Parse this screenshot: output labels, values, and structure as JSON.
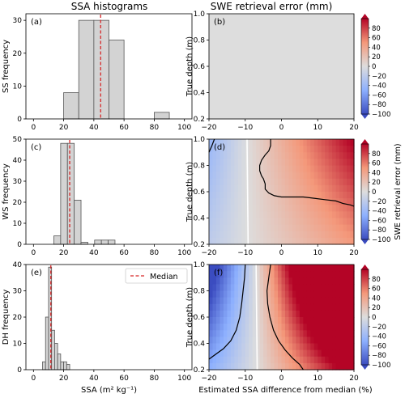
{
  "chart_data": [
    {
      "type": "bar",
      "panel": "a",
      "panel_label": "(a)",
      "column_title": "SSA histograms",
      "ylabel": "SS frequency",
      "xlabel": "",
      "xlim": [
        -5,
        105
      ],
      "ylim": [
        0,
        32
      ],
      "xticks": [
        "0",
        "20",
        "40",
        "60",
        "80",
        "100"
      ],
      "yticks": [
        "0",
        "10",
        "20",
        "30"
      ],
      "bins": [
        [
          20,
          30
        ],
        [
          30,
          40
        ],
        [
          40,
          50
        ],
        [
          50,
          60
        ],
        [
          60,
          70
        ],
        [
          70,
          80
        ],
        [
          80,
          90
        ]
      ],
      "values": [
        8,
        30,
        30,
        24,
        0,
        0,
        2
      ],
      "median": 44.5,
      "median_color": "#d62728",
      "bar_color": "#d3d3d3"
    },
    {
      "type": "bar",
      "panel": "c",
      "panel_label": "(c)",
      "ylabel": "WS frequency",
      "xlabel": "",
      "xlim": [
        -5,
        105
      ],
      "ylim": [
        0,
        50
      ],
      "xticks": [
        "0",
        "20",
        "40",
        "60",
        "80",
        "100"
      ],
      "yticks": [
        "0",
        "10",
        "20",
        "30",
        "40",
        "50"
      ],
      "bins": [
        [
          13.5,
          18
        ],
        [
          18,
          22.5
        ],
        [
          22.5,
          27
        ],
        [
          27,
          31.5
        ],
        [
          31.5,
          36
        ],
        [
          36,
          40.5
        ],
        [
          40.5,
          45
        ],
        [
          45,
          49.5
        ],
        [
          49.5,
          54
        ]
      ],
      "values": [
        4,
        48,
        48,
        21,
        1,
        0,
        2,
        2,
        2
      ],
      "median": 24,
      "median_color": "#d62728",
      "bar_color": "#d3d3d3"
    },
    {
      "type": "bar",
      "panel": "e",
      "panel_label": "(e)",
      "ylabel": "DH frequency",
      "xlabel": "SSA (m² kg⁻¹)",
      "xlim": [
        -5,
        105
      ],
      "ylim": [
        0,
        40
      ],
      "xticks": [
        "0",
        "20",
        "40",
        "60",
        "80",
        "100"
      ],
      "yticks": [
        "0",
        "10",
        "20",
        "30",
        "40"
      ],
      "bins": [
        [
          6,
          8
        ],
        [
          8,
          10
        ],
        [
          10,
          12
        ],
        [
          12,
          14
        ],
        [
          14,
          16
        ],
        [
          16,
          18
        ],
        [
          18,
          20
        ],
        [
          20,
          22
        ],
        [
          22,
          24
        ]
      ],
      "values": [
        3,
        20,
        39,
        15,
        10,
        6,
        3,
        3,
        2
      ],
      "median": 11.5,
      "median_color": "#d62728",
      "bar_color": "#d3d3d3",
      "legend": {
        "label": "Median",
        "position": "top-right"
      }
    },
    {
      "type": "heatmap",
      "panel": "b",
      "panel_label": "(b)",
      "column_title": "SWE retrieval error (mm)",
      "ylabel": "True depth (m)",
      "xlabel": "",
      "xlim": [
        -20,
        20
      ],
      "ylim": [
        0.2,
        1.0
      ],
      "xticks": [
        "−20",
        "−10",
        "0",
        "10",
        "20"
      ],
      "yticks": [
        "0.2",
        "0.4",
        "0.6",
        "0.8",
        "1.0"
      ],
      "field": "zero",
      "colorbar": {
        "range": [
          -100,
          100
        ],
        "ticks": [
          "80",
          "60",
          "40",
          "20",
          "0",
          "−20",
          "−40",
          "−60",
          "−80",
          "−100"
        ],
        "label": "",
        "extend": "both"
      }
    },
    {
      "type": "heatmap",
      "panel": "d",
      "panel_label": "(d)",
      "ylabel": "True depth (m)",
      "xlabel": "",
      "xlim": [
        -20,
        20
      ],
      "ylim": [
        0.2,
        1.0
      ],
      "xticks": [
        "−20",
        "−10",
        "0",
        "10",
        "20"
      ],
      "yticks": [
        "0.2",
        "0.4",
        "0.6",
        "0.8",
        "1.0"
      ],
      "field": "moderate",
      "zero_line_x": -9.5,
      "contour_right": [
        [
          -3,
          1.0
        ],
        [
          -3,
          0.95
        ],
        [
          -3.5,
          0.91
        ],
        [
          -4.5,
          0.88
        ],
        [
          -5.5,
          0.84
        ],
        [
          -6,
          0.8
        ],
        [
          -6,
          0.76
        ],
        [
          -5.5,
          0.72
        ],
        [
          -5,
          0.7
        ],
        [
          -4.5,
          0.66
        ],
        [
          -4.5,
          0.62
        ],
        [
          -3.5,
          0.59
        ],
        [
          -2,
          0.57
        ],
        [
          0,
          0.56
        ],
        [
          3,
          0.56
        ],
        [
          6,
          0.56
        ],
        [
          9,
          0.55
        ],
        [
          12,
          0.54
        ],
        [
          15,
          0.53
        ],
        [
          17,
          0.51
        ],
        [
          19,
          0.5
        ],
        [
          20,
          0.49
        ]
      ],
      "contour_left": [
        [
          -18.5,
          1.0
        ],
        [
          -19.2,
          0.95
        ],
        [
          -20,
          0.9
        ]
      ],
      "colorbar": {
        "range": [
          -100,
          100
        ],
        "ticks": [
          "80",
          "60",
          "40",
          "20",
          "0",
          "−20",
          "−40",
          "−60",
          "−80",
          "−100"
        ],
        "label": "SWE  retrieval error (mm)",
        "extend": "both"
      }
    },
    {
      "type": "heatmap",
      "panel": "f",
      "panel_label": "(f)",
      "ylabel": "True depth (m)",
      "xlabel": "Estimated SSA difference from median (%)",
      "xlim": [
        -20,
        20
      ],
      "ylim": [
        0.2,
        1.0
      ],
      "xticks": [
        "−20",
        "−10",
        "0",
        "10",
        "20"
      ],
      "yticks": [
        "0.2",
        "0.4",
        "0.6",
        "0.8",
        "1.0"
      ],
      "field": "strong",
      "zero_line_x": -7,
      "contour_left": [
        [
          -20,
          0.28
        ],
        [
          -18,
          0.32
        ],
        [
          -16,
          0.36
        ],
        [
          -14,
          0.42
        ],
        [
          -12.5,
          0.5
        ],
        [
          -11.5,
          0.6
        ],
        [
          -11,
          0.7
        ],
        [
          -10.6,
          0.8
        ],
        [
          -10.2,
          0.9
        ],
        [
          -10,
          1.0
        ]
      ],
      "contour_right": [
        [
          -3,
          1.0
        ],
        [
          -3.5,
          0.9
        ],
        [
          -4,
          0.8
        ],
        [
          -3.8,
          0.7
        ],
        [
          -3.2,
          0.6
        ],
        [
          -2.2,
          0.5
        ],
        [
          -0.8,
          0.42
        ],
        [
          1,
          0.35
        ],
        [
          3,
          0.29
        ],
        [
          5,
          0.24
        ],
        [
          6,
          0.2
        ]
      ],
      "colorbar": {
        "range": [
          -100,
          100
        ],
        "ticks": [
          "80",
          "60",
          "40",
          "20",
          "0",
          "−20",
          "−40",
          "−60",
          "−80",
          "−100"
        ],
        "label": "",
        "extend": "both"
      }
    }
  ]
}
